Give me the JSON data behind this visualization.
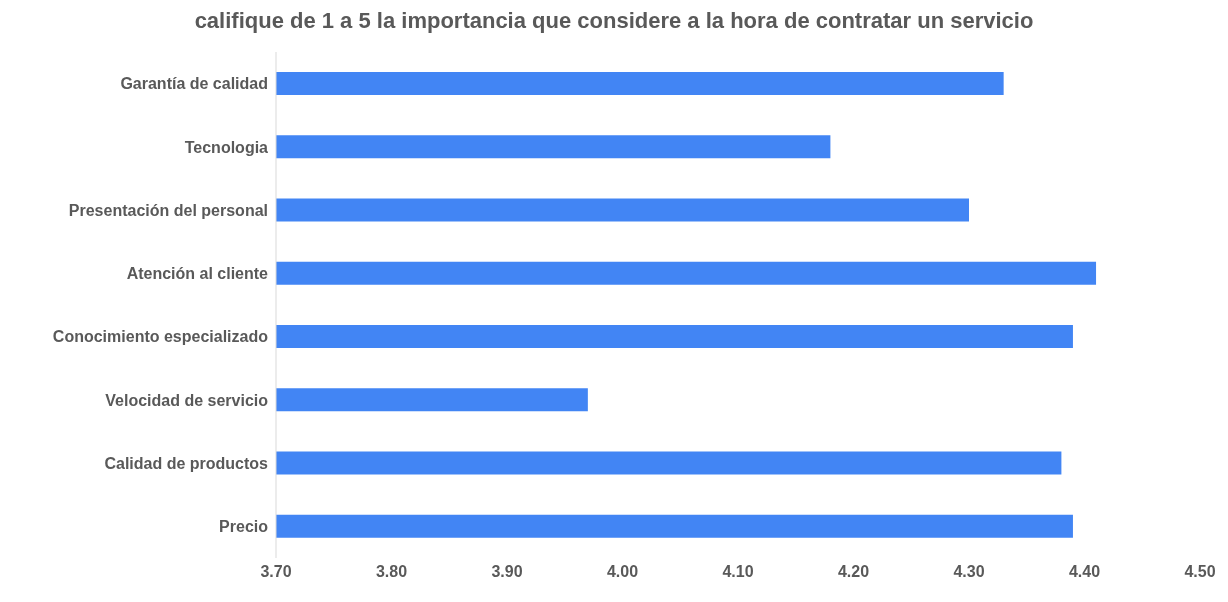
{
  "chart_data": {
    "type": "bar",
    "orientation": "horizontal",
    "title": "califique de 1 a 5 la importancia que considere a la hora de contratar un servicio",
    "categories": [
      "Garantía de calidad",
      "Tecnologia",
      "Presentación del personal",
      "Atención al cliente",
      "Conocimiento especializado",
      "Velocidad de servicio",
      "Calidad de productos",
      "Precio"
    ],
    "values": [
      4.33,
      4.18,
      4.3,
      4.41,
      4.39,
      3.97,
      4.38,
      4.39
    ],
    "color": "#4285f4",
    "xlim": [
      3.7,
      4.5
    ],
    "xticks": [
      {
        "value": 3.7,
        "label": "3.70"
      },
      {
        "value": 3.8,
        "label": "3.80"
      },
      {
        "value": 3.9,
        "label": "3.90"
      },
      {
        "value": 4.0,
        "label": "4.00"
      },
      {
        "value": 4.1,
        "label": "4.10"
      },
      {
        "value": 4.2,
        "label": "4.20"
      },
      {
        "value": 4.3,
        "label": "4.30"
      },
      {
        "value": 4.4,
        "label": "4.40"
      },
      {
        "value": 4.5,
        "label": "4.50"
      }
    ],
    "grid": false,
    "legend": false
  }
}
